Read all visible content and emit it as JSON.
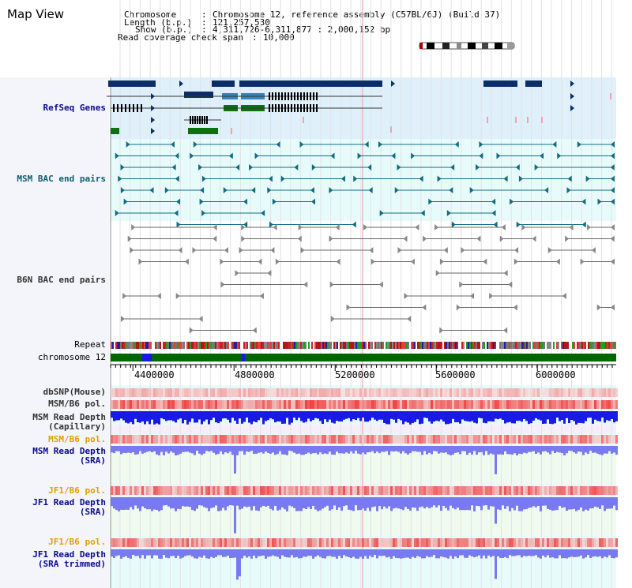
{
  "panel_title": "Map View",
  "info": {
    "chromosome_key": "Chromosome",
    "chromosome_val": "Chromosome 12, reference assembly (C57BL/6J) (Build 37)",
    "length_key": "Length (b.p.)",
    "length_val": "121,257,530",
    "show_key": "Show (b.p.)",
    "show_val": "4,311,726-6,311,877 : 2,000,152 bp",
    "span_key": "Read coverage check span",
    "span_val": "10,000"
  },
  "tracks": {
    "refseq": "RefSeq Genes",
    "msm_bac": "MSM BAC end pairs",
    "b6n_bac": "B6N BAC end pairs",
    "repeat": "Repeat",
    "chromosome": "chromosome 12",
    "dbsnp": "dbSNP(Mouse)",
    "msm_b6_pol_1": "MSM/B6 pol.",
    "msm_depth_cap_1": "MSM Read Depth",
    "msm_depth_cap_2": "(Capillary)",
    "msm_b6_pol_2": "MSM/B6 pol.",
    "msm_depth_sra_1": "MSM Read Depth",
    "msm_depth_sra_2": "(SRA)",
    "jf1_b6_pol_1": "JF1/B6 pol.",
    "jf1_depth_sra_1": "JF1 Read Depth",
    "jf1_depth_sra_2": "(SRA)",
    "jf1_b6_pol_2": "JF1/B6 pol.",
    "jf1_depth_trim_1": "JF1 Read Depth",
    "jf1_depth_trim_2": "(SRA trimmed)"
  },
  "axis": {
    "ticks": [
      "4400000",
      "4800000",
      "5200000",
      "5600000",
      "6000000"
    ],
    "tick_values": [
      4400000,
      4800000,
      5200000,
      5600000,
      6000000
    ],
    "range": [
      4311726,
      6311877
    ]
  },
  "colors": {
    "refseq_bg": "#dff0fb",
    "msm_bg": "#e8fbfb",
    "gene_dark": "#0b2e6b",
    "gene_mid": "#3a84b5",
    "gene_green": "#0e6e12",
    "msm_line": "#116d80",
    "b6n_line": "#666666",
    "chromosome": "#006600",
    "depth_blue": "#1a1ae6",
    "depth_light": "#7a7af0",
    "pol_red": "#e84848"
  }
}
